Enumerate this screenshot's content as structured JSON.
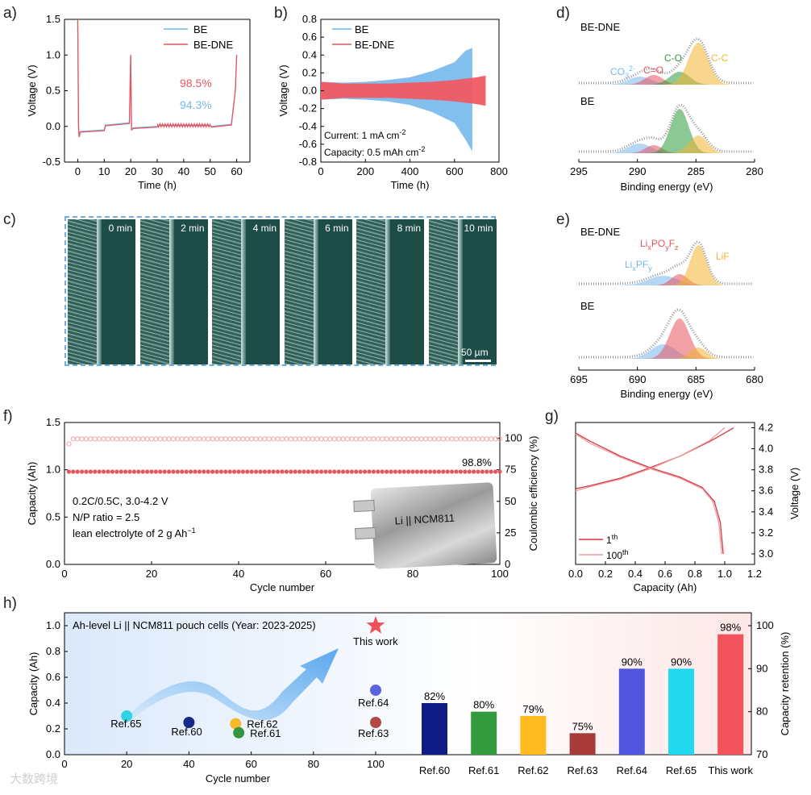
{
  "panel_labels": {
    "a": "a)",
    "b": "b)",
    "c": "c)",
    "d": "d)",
    "e": "e)",
    "f": "f)",
    "g": "g)",
    "h": "h)"
  },
  "panel_a": {
    "legend": [
      "BE",
      "BE-DNE"
    ],
    "ann_red": "98.5%",
    "ann_blue": "94.3%"
  },
  "panel_b": {
    "legend": [
      "BE",
      "BE-DNE"
    ],
    "note_current": "Current: 1 mA cm",
    "note_current_sup": "-2",
    "note_capacity": "Capacity: 0.5 mAh cm",
    "note_capacity_sup": "-2"
  },
  "panel_c": {
    "times": [
      "0 min",
      "2 min",
      "4 min",
      "6 min",
      "8 min",
      "10 min"
    ],
    "scale": "50 µm"
  },
  "panel_d": {
    "top": "BE-DNE",
    "bottom": "BE",
    "xlabel": "Binding energy (eV)",
    "ticks": [
      "295",
      "290",
      "285",
      "280"
    ]
  },
  "panel_e": {
    "top": "BE-DNE",
    "bottom": "BE",
    "xlabel": "Binding energy (eV)",
    "ticks": [
      "695",
      "690",
      "685",
      "680"
    ],
    "liF": "LiF"
  },
  "panel_f": {
    "ann": "98.8%",
    "cond1": "0.2C/0.5C, 3.0-4.2 V",
    "cond2": "N/P ratio = 2.5",
    "cond3": "lean electrolyte of 2 g Ah",
    "cond3_sup": "−1",
    "pouch": "Li || NCM811"
  },
  "panel_g": {
    "leg1": "1",
    "leg1_sup": "th",
    "leg2": "100",
    "leg2_sup": "th"
  },
  "panel_h": {
    "title": "Ah-level Li || NCM811 pouch cells (Year: 2023-2025)"
  },
  "watermark": "大数跨境",
  "colors": {
    "be": "#74b7ec",
    "dne": "#e8545e",
    "red": "#e8545e",
    "blue": "#74b7ec"
  },
  "chart_data": [
    {
      "type": "line",
      "id": "a",
      "xlabel": "Time (h)",
      "ylabel": "Voltage (V)",
      "xlim": [
        -5,
        65
      ],
      "ylim": [
        -0.5,
        1.5
      ],
      "xticks": [
        0,
        10,
        20,
        30,
        40,
        50,
        60
      ],
      "yticks": [
        -0.5,
        0.0,
        0.5,
        1.0,
        1.5
      ],
      "series": [
        {
          "name": "BE",
          "x": [
            0,
            0.3,
            0.5,
            1,
            10,
            10.5,
            11,
            19.5,
            20,
            20.3,
            21,
            30,
            30.5,
            50,
            50.5,
            58,
            59.5,
            60
          ],
          "y": [
            1.5,
            0.0,
            -0.12,
            -0.07,
            -0.05,
            0.02,
            0.02,
            0.05,
            1.0,
            -0.04,
            -0.02,
            0.0,
            0.02,
            0.02,
            0.0,
            0.03,
            0.5,
            1.0
          ]
        },
        {
          "name": "BE-DNE",
          "x": [
            0,
            0.3,
            0.5,
            1,
            10,
            10.5,
            11,
            19.5,
            20,
            20.3,
            21,
            30,
            30.5,
            50,
            50.5,
            58,
            59.5,
            60
          ],
          "y": [
            1.5,
            0.0,
            -0.15,
            -0.08,
            -0.06,
            0.01,
            0.01,
            0.04,
            1.0,
            -0.05,
            -0.03,
            -0.01,
            0.01,
            0.01,
            -0.01,
            0.02,
            0.5,
            1.0
          ]
        }
      ],
      "annotations": [
        "98.5%",
        "94.3%"
      ]
    },
    {
      "type": "area",
      "id": "b",
      "xlabel": "Time (h)",
      "ylabel": "Voltage (V)",
      "xlim": [
        0,
        800
      ],
      "ylim": [
        -0.8,
        0.8
      ],
      "xticks": [
        0,
        200,
        400,
        600,
        800
      ],
      "yticks": [
        -0.8,
        -0.6,
        -0.4,
        -0.2,
        0.0,
        0.2,
        0.4,
        0.6,
        0.8
      ],
      "series": [
        {
          "name": "BE",
          "x": [
            0,
            100,
            200,
            300,
            400,
            500,
            600,
            650,
            680
          ],
          "upper": [
            0.1,
            0.09,
            0.1,
            0.12,
            0.15,
            0.22,
            0.32,
            0.45,
            0.48
          ],
          "lower": [
            -0.1,
            -0.09,
            -0.1,
            -0.12,
            -0.16,
            -0.24,
            -0.36,
            -0.55,
            -0.68
          ]
        },
        {
          "name": "BE-DNE",
          "x": [
            0,
            100,
            200,
            300,
            400,
            500,
            600,
            700,
            740
          ],
          "upper": [
            0.1,
            0.08,
            0.08,
            0.08,
            0.09,
            0.1,
            0.12,
            0.15,
            0.17
          ],
          "lower": [
            -0.1,
            -0.08,
            -0.08,
            -0.08,
            -0.09,
            -0.1,
            -0.12,
            -0.15,
            -0.17
          ]
        }
      ]
    },
    {
      "type": "line",
      "id": "d",
      "xlabel": "Binding energy (eV)",
      "xlim": [
        295,
        280
      ],
      "xticks": [
        295,
        290,
        285,
        280
      ],
      "components": [
        {
          "label": "CO3 2-",
          "center": 289.8,
          "color": "#74b7ec"
        },
        {
          "label": "C=O",
          "center": 288.6,
          "color": "#e8545e"
        },
        {
          "label": "C-O",
          "center": 286.4,
          "color": "#2e9a3c"
        },
        {
          "label": "C-C",
          "center": 284.8,
          "color": "#f2b531"
        }
      ]
    },
    {
      "type": "line",
      "id": "e",
      "xlabel": "Binding energy (eV)",
      "xlim": [
        695,
        680
      ],
      "xticks": [
        695,
        690,
        685,
        680
      ],
      "components": [
        {
          "label": "LixPFy",
          "center": 687.8,
          "color": "#74b7ec"
        },
        {
          "label": "LixPOyFz",
          "center": 686.4,
          "color": "#e8545e"
        },
        {
          "label": "LiF",
          "center": 684.8,
          "color": "#f2b531"
        }
      ]
    },
    {
      "type": "scatter",
      "id": "f",
      "xlabel": "Cycle number",
      "ylabel": "Capacity (Ah)",
      "y2label": "Coulombic efficiency (%)",
      "xlim": [
        0,
        100
      ],
      "ylim": [
        0,
        1.5
      ],
      "y2lim": [
        0,
        112.5
      ],
      "xticks": [
        0,
        20,
        40,
        60,
        80,
        100
      ],
      "yticks": [
        0.0,
        0.5,
        1.0,
        1.5
      ],
      "y2ticks": [
        0,
        25,
        50,
        75,
        100
      ],
      "series": [
        {
          "name": "Capacity",
          "start": 1,
          "end": 100,
          "first": 0.98,
          "value": 0.98
        },
        {
          "name": "Coulombic efficiency",
          "start": 1,
          "end": 100,
          "first": 95.5,
          "value": 99.5
        }
      ]
    },
    {
      "type": "line",
      "id": "g",
      "xlabel": "Capacity (Ah)",
      "ylabel": "Voltage (V)",
      "xlim": [
        0,
        1.2
      ],
      "ylim": [
        2.9,
        4.25
      ],
      "xticks": [
        0.0,
        0.2,
        0.4,
        0.6,
        0.8,
        1.0,
        1.2
      ],
      "yticks": [
        3.0,
        3.2,
        3.4,
        3.6,
        3.8,
        4.0,
        4.2
      ],
      "series": [
        {
          "name": "1th",
          "charge_x": [
            0,
            0.1,
            0.3,
            0.5,
            0.7,
            0.9,
            1.0,
            1.06
          ],
          "charge_y": [
            3.62,
            3.65,
            3.72,
            3.82,
            3.93,
            4.07,
            4.15,
            4.2
          ],
          "discharge_x": [
            0,
            0.1,
            0.3,
            0.5,
            0.7,
            0.85,
            0.93,
            0.97,
            0.99
          ],
          "discharge_y": [
            4.15,
            4.07,
            3.93,
            3.82,
            3.73,
            3.63,
            3.5,
            3.3,
            3.0
          ]
        },
        {
          "name": "100th",
          "charge_x": [
            0,
            0.1,
            0.3,
            0.5,
            0.7,
            0.9,
            1.0
          ],
          "charge_y": [
            3.6,
            3.64,
            3.71,
            3.81,
            3.93,
            4.08,
            4.2
          ],
          "discharge_x": [
            0,
            0.1,
            0.3,
            0.5,
            0.7,
            0.85,
            0.92,
            0.96,
            0.98
          ],
          "discharge_y": [
            4.14,
            4.05,
            3.92,
            3.81,
            3.72,
            3.62,
            3.5,
            3.3,
            3.0
          ]
        }
      ]
    },
    {
      "type": "scatter",
      "id": "h_scatter",
      "xlabel": "Cycle number",
      "ylabel": "Capacity (Ah)",
      "xlim": [
        0,
        120
      ],
      "ylim": [
        0,
        1.1
      ],
      "xticks": [
        0,
        20,
        40,
        60,
        80,
        100
      ],
      "yticks": [
        0.0,
        0.2,
        0.4,
        0.6,
        0.8,
        1.0
      ],
      "points": [
        {
          "label": "Ref.65",
          "x": 20,
          "y": 0.3,
          "color": "#2fd3e8"
        },
        {
          "label": "Ref.60",
          "x": 40,
          "y": 0.25,
          "color": "#162a86"
        },
        {
          "label": "Ref.62",
          "x": 55,
          "y": 0.24,
          "color": "#f7b92c"
        },
        {
          "label": "Ref.61",
          "x": 56,
          "y": 0.17,
          "color": "#35953f"
        },
        {
          "label": "Ref.64",
          "x": 100,
          "y": 0.5,
          "color": "#5a63e0"
        },
        {
          "label": "Ref.63",
          "x": 100,
          "y": 0.25,
          "color": "#b44847"
        },
        {
          "label": "This work",
          "x": 100,
          "y": 1.0,
          "color": "#f04f58",
          "marker": "star"
        }
      ]
    },
    {
      "type": "bar",
      "id": "h_bar",
      "ylabel": "Capacity retention (%)",
      "ylim": [
        70,
        103
      ],
      "yticks": [
        70,
        80,
        90,
        100
      ],
      "categories": [
        "Ref.60",
        "Ref.61",
        "Ref.62",
        "Ref.63",
        "Ref.64",
        "Ref.65",
        "This work"
      ],
      "values": [
        82,
        80,
        79,
        75,
        90,
        90,
        98
      ],
      "labels": [
        "82%",
        "80%",
        "79%",
        "75%",
        "90%",
        "90%",
        "98%"
      ],
      "colors": [
        "#101c86",
        "#339a3d",
        "#ffbb20",
        "#a83a3a",
        "#5156df",
        "#22d8ee",
        "#f2525b"
      ]
    }
  ]
}
